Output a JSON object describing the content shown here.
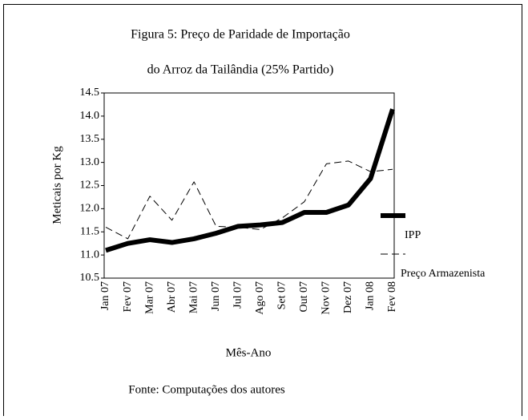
{
  "chart_data": {
    "type": "line",
    "title": [
      "Figura 5: Preço de Paridade de Importação",
      "do Arroz da Tailândia (25% Partido)"
    ],
    "y_label": "Meticais por Kg",
    "x_label": "Mês-Ano",
    "source": "Fonte: Computações dos autores",
    "categories": [
      "Jan 07",
      "Fev 07",
      "Mar 07",
      "Abr 07",
      "Mai 07",
      "Jun 07",
      "Jul 07",
      "Ago 07",
      "Set 07",
      "Out 07",
      "Nov 07",
      "Dez 07",
      "Jan 08",
      "Fev 08"
    ],
    "series": [
      {
        "name": "IPP",
        "color": "#000000",
        "style": "solid",
        "values": [
          11.1,
          11.25,
          11.33,
          11.27,
          11.35,
          11.47,
          11.62,
          11.65,
          11.7,
          11.92,
          11.92,
          12.08,
          12.65,
          14.15
        ]
      },
      {
        "name": "Preço Armazenista",
        "color": "#000000",
        "style": "dashed",
        "values": [
          11.6,
          11.35,
          12.27,
          11.75,
          12.58,
          11.62,
          11.6,
          11.55,
          11.8,
          12.15,
          12.97,
          13.03,
          12.8,
          12.85
        ]
      }
    ],
    "ylim": [
      10.5,
      14.5
    ],
    "yticks": [
      10.5,
      {
        "value": 11,
        "label": "11.0"
      },
      11.5,
      {
        "value": 12,
        "label": "12.0"
      },
      12.5,
      {
        "value": 13,
        "label": "13.0"
      },
      13.5,
      {
        "value": 14,
        "label": "14.0"
      },
      14.5
    ],
    "legend": "right"
  }
}
